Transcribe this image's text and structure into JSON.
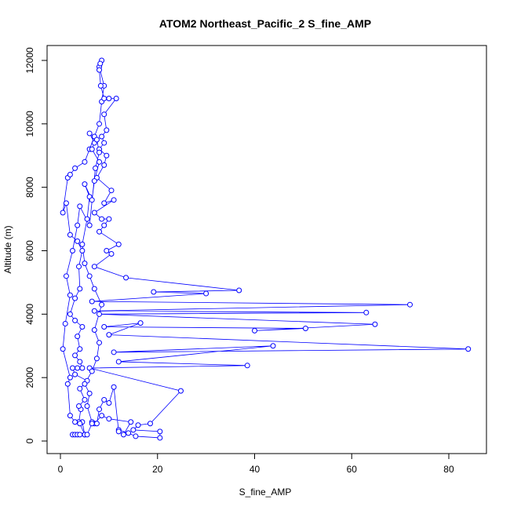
{
  "chart_data": {
    "type": "line",
    "title": "ATOM2 Northeast_Pacific_2 S_fine_AMP",
    "x_label": "S_fine_AMP",
    "y_label": "Altitude (m)",
    "color": "#0000ff",
    "x": [
      2.5,
      3,
      3.5,
      4,
      5,
      4.5,
      3.8,
      4.2,
      3.8,
      5,
      4,
      5.5,
      3,
      2.5,
      3.5,
      4.5,
      4,
      3,
      4,
      3.5,
      4.5,
      3,
      2,
      3,
      4,
      3.8,
      4.5,
      3.5,
      2,
      1.2,
      0.5,
      1.5,
      2,
      3,
      5,
      6,
      7,
      8,
      8.5,
      9,
      8,
      8.5,
      8.2,
      8,
      8.3,
      9,
      10,
      11.5,
      9,
      9.5,
      8.5,
      9,
      8,
      9.5,
      9,
      7.5,
      10.5,
      9,
      11,
      7,
      8.5,
      10,
      9,
      8,
      12,
      9.5,
      10.5,
      7,
      13.5,
      36.8,
      19.2,
      30,
      6.5,
      72,
      7,
      63,
      8,
      64.8,
      40,
      50.5,
      9,
      16.5,
      10,
      84,
      11,
      43.8,
      12,
      38.5,
      6,
      24.8,
      18.5,
      16,
      15,
      20.5,
      20.5,
      15.5,
      14,
      12,
      13,
      14.5,
      10,
      8.5,
      7,
      6.5,
      5.5,
      6,
      5,
      6.5,
      7.5,
      8,
      7,
      8.5,
      7,
      6,
      5,
      4.5,
      5.5,
      6,
      5,
      6.5,
      7,
      8,
      6.5,
      7,
      6,
      7.5,
      8,
      7.2,
      6,
      4,
      3.5,
      2.5,
      1.2,
      2,
      1,
      0.5,
      2,
      1.5,
      2,
      3,
      4,
      5,
      5.5,
      6.5,
      7.5,
      8,
      9,
      10,
      11,
      12
    ],
    "values": [
      200,
      200,
      200,
      200,
      200,
      600,
      600,
      1000,
      1100,
      1300,
      1650,
      1900,
      2100,
      2300,
      2300,
      2300,
      2500,
      2700,
      2900,
      3300,
      3600,
      3800,
      4000,
      4500,
      4800,
      5500,
      6000,
      6300,
      6500,
      7500,
      7200,
      8300,
      8400,
      8600,
      8800,
      9200,
      9600,
      10000,
      10700,
      11200,
      11800,
      12000,
      11900,
      11700,
      11200,
      10800,
      10800,
      10800,
      10300,
      9800,
      9600,
      9400,
      9200,
      9000,
      8700,
      8300,
      7900,
      7500,
      7600,
      7200,
      7000,
      7000,
      6800,
      6600,
      6200,
      6000,
      5900,
      5500,
      5150,
      4750,
      4700,
      4650,
      4400,
      4300,
      4100,
      4050,
      4000,
      3680,
      3480,
      3550,
      3600,
      3720,
      3350,
      2900,
      2800,
      3000,
      2500,
      2380,
      2300,
      1580,
      550,
      500,
      350,
      300,
      100,
      150,
      250,
      350,
      200,
      600,
      700,
      800,
      550,
      600,
      1100,
      1500,
      1800,
      2200,
      2600,
      3100,
      3500,
      4300,
      4800,
      5200,
      5600,
      6200,
      7000,
      7700,
      8100,
      7600,
      8200,
      8800,
      9200,
      9400,
      9700,
      9500,
      9100,
      8600,
      6800,
      7400,
      6800,
      6000,
      5200,
      4600,
      3700,
      2900,
      2000,
      1800,
      800,
      600,
      550,
      200,
      200,
      550,
      550,
      1000,
      1300,
      1200,
      1700,
      300
    ],
    "xlim": [
      -2.75,
      87.76
    ],
    "ylim": [
      -396,
      12470
    ],
    "xticks": [
      0,
      20,
      40,
      60,
      80
    ],
    "yticks": [
      0,
      2000,
      4000,
      6000,
      8000,
      10000,
      12000
    ]
  }
}
